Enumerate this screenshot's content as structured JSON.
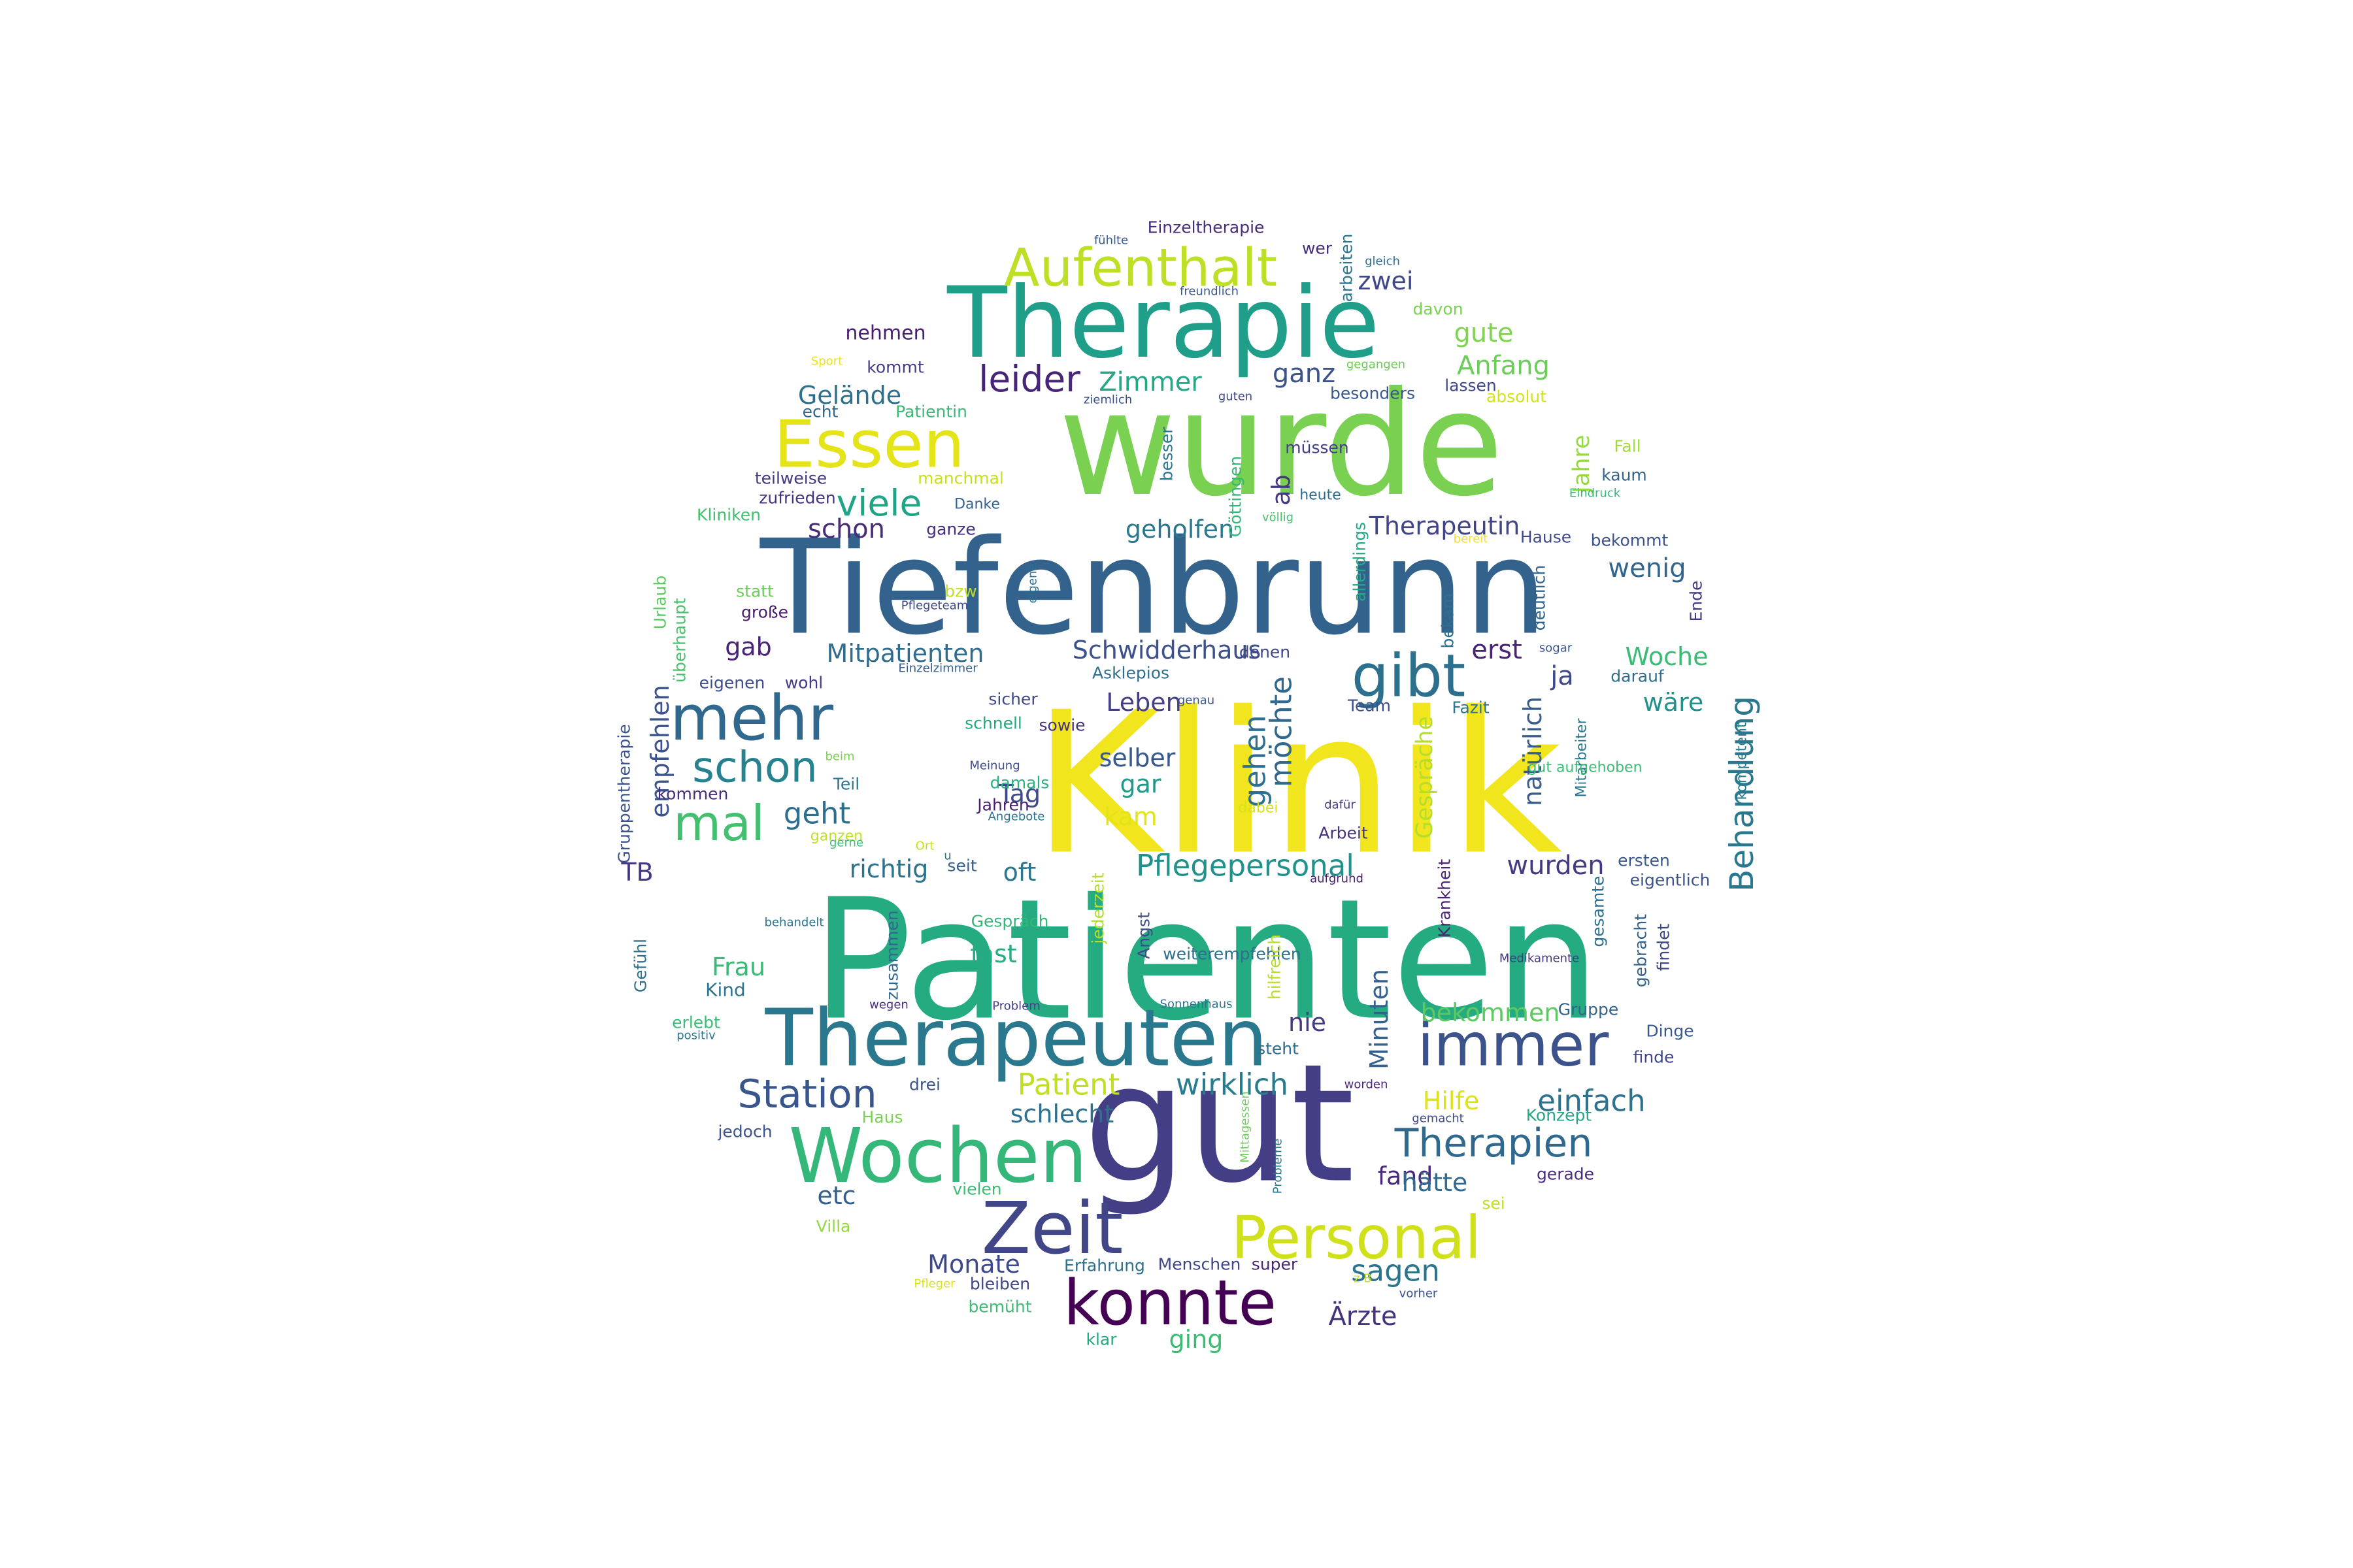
{
  "cloud": {
    "words": [
      {
        "text": "Klinik",
        "color": "#f1e51d"
      },
      {
        "text": "Patienten",
        "color": "#25ab82"
      },
      {
        "text": "Tiefenbrunn",
        "color": "#33638d"
      },
      {
        "text": "wurde",
        "color": "#7ad151"
      },
      {
        "text": "gut",
        "color": "#433e85"
      },
      {
        "text": "Therapie",
        "color": "#1f9e89"
      },
      {
        "text": "Therapeuten",
        "color": "#2a788e"
      },
      {
        "text": "immer",
        "color": "#3b528b"
      },
      {
        "text": "Wochen",
        "color": "#35b779"
      },
      {
        "text": "konnte",
        "color": "#440154"
      },
      {
        "text": "Zeit",
        "color": "#404688"
      },
      {
        "text": "Personal",
        "color": "#d0e11c"
      },
      {
        "text": "Essen",
        "color": "#e5e419"
      },
      {
        "text": "Aufenthalt",
        "color": "#bddf26"
      },
      {
        "text": "mehr",
        "color": "#31688e"
      },
      {
        "text": "gibt",
        "color": "#2d708e"
      },
      {
        "text": "schon",
        "color": "#26828e"
      },
      {
        "text": "mal",
        "color": "#44bf70"
      },
      {
        "text": "Station",
        "color": "#39568c"
      },
      {
        "text": "Therapien",
        "color": "#31688e"
      },
      {
        "text": "Behandlung",
        "color": "#2a788e"
      },
      {
        "text": "leider",
        "color": "#482677"
      },
      {
        "text": "viele",
        "color": "#20a486"
      },
      {
        "text": "Pflegepersonal",
        "color": "#21918c"
      },
      {
        "text": "einfach",
        "color": "#2c728e"
      },
      {
        "text": "Patient",
        "color": "#c2df23"
      },
      {
        "text": "wirklich",
        "color": "#287c8e"
      },
      {
        "text": "sagen",
        "color": "#2c738e"
      },
      {
        "text": "Ärzte",
        "color": "#46337e"
      },
      {
        "text": "Zimmer",
        "color": "#22a884"
      },
      {
        "text": "geholfen",
        "color": "#2a778e"
      },
      {
        "text": "Mitpatienten",
        "color": "#2f6c8e"
      },
      {
        "text": "Schwidderhaus",
        "color": "#3c508b"
      },
      {
        "text": "Therapeutin",
        "color": "#414487"
      },
      {
        "text": "Gelände",
        "color": "#2d708e"
      },
      {
        "text": "Anfang",
        "color": "#6ccd5a"
      },
      {
        "text": "gute",
        "color": "#7fd34e"
      },
      {
        "text": "zwei",
        "color": "#3f4788"
      },
      {
        "text": "ganz",
        "color": "#3b528b"
      },
      {
        "text": "schon",
        "color": "#472c7a"
      },
      {
        "text": "geht",
        "color": "#2e6f8e"
      },
      {
        "text": "richtig",
        "color": "#2c728e"
      },
      {
        "text": "Tag",
        "color": "#3e4989"
      },
      {
        "text": "selber",
        "color": "#38588c"
      },
      {
        "text": "Leben",
        "color": "#433e85"
      },
      {
        "text": "gar",
        "color": "#1f9a8a"
      },
      {
        "text": "kam",
        "color": "#e2e418"
      },
      {
        "text": "gehen",
        "color": "#2e6e8e"
      },
      {
        "text": "möchte",
        "color": "#31688e"
      },
      {
        "text": "oft",
        "color": "#2a768e"
      },
      {
        "text": "Woche",
        "color": "#3bbb75"
      },
      {
        "text": "wäre",
        "color": "#21918c"
      },
      {
        "text": "wenig",
        "color": "#32658e"
      },
      {
        "text": "erst",
        "color": "#482475"
      },
      {
        "text": "ja",
        "color": "#3f4889"
      },
      {
        "text": "natürlich",
        "color": "#365d8d"
      },
      {
        "text": "Gespräche",
        "color": "#b5de2b"
      },
      {
        "text": "Jahre",
        "color": "#95d840"
      },
      {
        "text": "wurden",
        "color": "#443983"
      },
      {
        "text": "bekommen",
        "color": "#5ec962"
      },
      {
        "text": "Minuten",
        "color": "#34618d"
      },
      {
        "text": "nie",
        "color": "#443a83"
      },
      {
        "text": "Hilfe",
        "color": "#dde318"
      },
      {
        "text": "fand",
        "color": "#482878"
      },
      {
        "text": "hätte",
        "color": "#31688e"
      },
      {
        "text": "schlecht",
        "color": "#2d708e"
      },
      {
        "text": "Monate",
        "color": "#3e4989"
      },
      {
        "text": "etc",
        "color": "#355f8d"
      },
      {
        "text": "ging",
        "color": "#3dbc74"
      },
      {
        "text": "Frau",
        "color": "#3aba76"
      },
      {
        "text": "fast",
        "color": "#25ac82"
      },
      {
        "text": "Kind",
        "color": "#2b748e"
      },
      {
        "text": "gab",
        "color": "#482475"
      },
      {
        "text": "empfehlen",
        "color": "#3b528b"
      },
      {
        "text": "TB",
        "color": "#453781"
      },
      {
        "text": "ab",
        "color": "#453882"
      },
      {
        "text": "Einzeltherapie",
        "color": "#472d7b"
      },
      {
        "text": "nehmen",
        "color": "#481f70"
      },
      {
        "text": "kommt",
        "color": "#433d84"
      },
      {
        "text": "echt",
        "color": "#31678e"
      },
      {
        "text": "Patientin",
        "color": "#3aba76"
      },
      {
        "text": "teilweise",
        "color": "#443983"
      },
      {
        "text": "zufrieden",
        "color": "#46327e"
      },
      {
        "text": "Kliniken",
        "color": "#44bf70"
      },
      {
        "text": "ganze",
        "color": "#472d7b"
      },
      {
        "text": "manchmal",
        "color": "#c8e020"
      },
      {
        "text": "Danke",
        "color": "#34608d"
      },
      {
        "text": "Göttingen",
        "color": "#35b779"
      },
      {
        "text": "besser",
        "color": "#2a768e"
      },
      {
        "text": "heute",
        "color": "#2f6b8e"
      },
      {
        "text": "völlig",
        "color": "#4ac16d"
      },
      {
        "text": "müssen",
        "color": "#433e85"
      },
      {
        "text": "besonders",
        "color": "#38588c"
      },
      {
        "text": "lassen",
        "color": "#3e4989"
      },
      {
        "text": "absolut",
        "color": "#d5e21a"
      },
      {
        "text": "davon",
        "color": "#7ad151"
      },
      {
        "text": "wer",
        "color": "#472c7a"
      },
      {
        "text": "fühlte",
        "color": "#38598c"
      },
      {
        "text": "gleich",
        "color": "#2e6d8e"
      },
      {
        "text": "arbeiten",
        "color": "#2a768e"
      },
      {
        "text": "freundlich",
        "color": "#39568c"
      },
      {
        "text": "Sport",
        "color": "#e7e419"
      },
      {
        "text": "ziemlich",
        "color": "#3b528b"
      },
      {
        "text": "guten",
        "color": "#3f4889"
      },
      {
        "text": "gegangen",
        "color": "#6ece58"
      },
      {
        "text": "Fall",
        "color": "#a2da37"
      },
      {
        "text": "kaum",
        "color": "#33638d"
      },
      {
        "text": "Eindruck",
        "color": "#35b779"
      },
      {
        "text": "bekommt",
        "color": "#3b528b"
      },
      {
        "text": "Hause",
        "color": "#3e4989"
      },
      {
        "text": "bereit",
        "color": "#f1e51d"
      },
      {
        "text": "Ende",
        "color": "#453882"
      },
      {
        "text": "deutlich",
        "color": "#32648e"
      },
      {
        "text": "sogar",
        "color": "#3b528b"
      },
      {
        "text": "bekam",
        "color": "#2d708e"
      },
      {
        "text": "allerdings",
        "color": "#22a884"
      },
      {
        "text": "denen",
        "color": "#3f4788"
      },
      {
        "text": "Asklepios",
        "color": "#2e6f8e"
      },
      {
        "text": "Team",
        "color": "#3d4e8a"
      },
      {
        "text": "Fazit",
        "color": "#2b758e"
      },
      {
        "text": "darauf",
        "color": "#2e6d8e"
      },
      {
        "text": "Mitarbeiter",
        "color": "#2b748e"
      },
      {
        "text": "kompetent",
        "color": "#287c8e"
      },
      {
        "text": "dafür",
        "color": "#443983"
      },
      {
        "text": "gut aufgehoben",
        "color": "#3dbc74"
      },
      {
        "text": "eigene",
        "color": "#2e6e8e"
      },
      {
        "text": "Pflegeteam",
        "color": "#3e4a89"
      },
      {
        "text": "bzw",
        "color": "#c0df25"
      },
      {
        "text": "statt",
        "color": "#6ccd5a"
      },
      {
        "text": "große",
        "color": "#481c6e"
      },
      {
        "text": "Urlaub",
        "color": "#5ec962"
      },
      {
        "text": "überhaupt",
        "color": "#4ac16d"
      },
      {
        "text": "Einzelzimmer",
        "color": "#355e8d"
      },
      {
        "text": "eigenen",
        "color": "#3c4f8a"
      },
      {
        "text": "wohl",
        "color": "#443983"
      },
      {
        "text": "genau",
        "color": "#39568c"
      },
      {
        "text": "sicher",
        "color": "#3f4788"
      },
      {
        "text": "schnell",
        "color": "#22a884"
      },
      {
        "text": "sowie",
        "color": "#46337e"
      },
      {
        "text": "beim",
        "color": "#7ad151"
      },
      {
        "text": "Meinung",
        "color": "#3e4989"
      },
      {
        "text": "Gruppentherapie",
        "color": "#3b528b"
      },
      {
        "text": "kommen",
        "color": "#46307e"
      },
      {
        "text": "Teil",
        "color": "#2a788e"
      },
      {
        "text": "damals",
        "color": "#2ab07f"
      },
      {
        "text": "Jahren",
        "color": "#481f70"
      },
      {
        "text": "Angebote",
        "color": "#2c728e"
      },
      {
        "text": "dabei",
        "color": "#d8e219"
      },
      {
        "text": "ganzen",
        "color": "#c2df23"
      },
      {
        "text": "gerne",
        "color": "#3dbc74"
      },
      {
        "text": "Ort",
        "color": "#c8e020"
      },
      {
        "text": "u",
        "color": "#31688e"
      },
      {
        "text": "seit",
        "color": "#355f8d"
      },
      {
        "text": "Arbeit",
        "color": "#46327e"
      },
      {
        "text": "ersten",
        "color": "#38588c"
      },
      {
        "text": "eigentlich",
        "color": "#3b528b"
      },
      {
        "text": "Krankheit",
        "color": "#482575"
      },
      {
        "text": "gesamte",
        "color": "#2d708e"
      },
      {
        "text": "gebracht",
        "color": "#33638d"
      },
      {
        "text": "findet",
        "color": "#3f4788"
      },
      {
        "text": "Medikamente",
        "color": "#453882"
      },
      {
        "text": "aufgrund",
        "color": "#481f70"
      },
      {
        "text": "jederzeit",
        "color": "#b5de2b"
      },
      {
        "text": "Angst",
        "color": "#3e4a89"
      },
      {
        "text": "behandelt",
        "color": "#2d708e"
      },
      {
        "text": "Gefühl",
        "color": "#2c728e"
      },
      {
        "text": "Gespräch",
        "color": "#35b779"
      },
      {
        "text": "zusammen",
        "color": "#31688e"
      },
      {
        "text": "wegen",
        "color": "#472c7a"
      },
      {
        "text": "weiterempfehlen",
        "color": "#2e6f8e"
      },
      {
        "text": "Problem",
        "color": "#433e85"
      },
      {
        "text": "Sonnenhaus",
        "color": "#2c738e"
      },
      {
        "text": "hilfreich",
        "color": "#b8de29"
      },
      {
        "text": "Gruppe",
        "color": "#33638d"
      },
      {
        "text": "steht",
        "color": "#2e6e8e"
      },
      {
        "text": "Dinge",
        "color": "#38588c"
      },
      {
        "text": "finde",
        "color": "#404688"
      },
      {
        "text": "erlebt",
        "color": "#3dbc74"
      },
      {
        "text": "positiv",
        "color": "#2a768e"
      },
      {
        "text": "drei",
        "color": "#3b528b"
      },
      {
        "text": "worden",
        "color": "#482475"
      },
      {
        "text": "gemacht",
        "color": "#3e4989"
      },
      {
        "text": "Konzept",
        "color": "#22a884"
      },
      {
        "text": "Mittagessen",
        "color": "#6ccd5a"
      },
      {
        "text": "Probleme",
        "color": "#2a788e"
      },
      {
        "text": "Haus",
        "color": "#7ad151"
      },
      {
        "text": "jedoch",
        "color": "#3b528b"
      },
      {
        "text": "gerade",
        "color": "#472d7b"
      },
      {
        "text": "vielen",
        "color": "#3dbc74"
      },
      {
        "text": "sei",
        "color": "#bddf26"
      },
      {
        "text": "Villa",
        "color": "#95d840"
      },
      {
        "text": "Erfahrung",
        "color": "#2e6f8e"
      },
      {
        "text": "Menschen",
        "color": "#3f4788"
      },
      {
        "text": "super",
        "color": "#482677"
      },
      {
        "text": "bleiben",
        "color": "#404688"
      },
      {
        "text": "Pfleger",
        "color": "#dde318"
      },
      {
        "text": "bemüht",
        "color": "#3dbc74"
      },
      {
        "text": "z B",
        "color": "#c8e020"
      },
      {
        "text": "vorher",
        "color": "#3b528b"
      },
      {
        "text": "klar",
        "color": "#22a884"
      }
    ]
  }
}
